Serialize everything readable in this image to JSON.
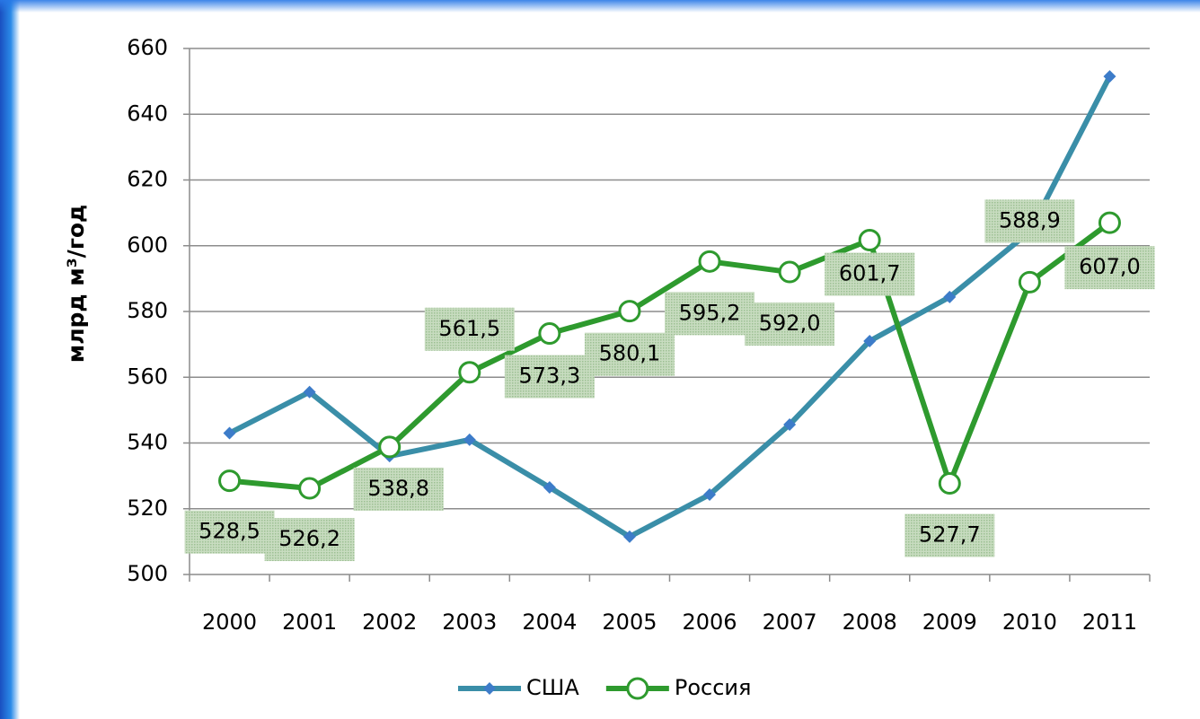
{
  "chart_data": {
    "type": "line",
    "y_label": "млрд м³/год",
    "categories": [
      "2000",
      "2001",
      "2002",
      "2003",
      "2004",
      "2005",
      "2006",
      "2007",
      "2008",
      "2009",
      "2010",
      "2011"
    ],
    "series": [
      {
        "name": "США",
        "color": "#3a8ea8",
        "marker": "diamond",
        "marker_color": "#3d7cc9",
        "values": [
          543,
          555.5,
          536,
          541,
          526.5,
          511.5,
          524.3,
          545.6,
          571,
          584.4,
          604.3,
          651.5
        ]
      },
      {
        "name": "Россия",
        "color": "#2e9a2e",
        "marker": "circle",
        "marker_color": "#ffffff",
        "values": [
          528.5,
          526.2,
          538.8,
          561.5,
          573.3,
          580.1,
          595.2,
          592.0,
          601.7,
          527.7,
          588.9,
          607.0
        ],
        "value_labels": [
          "528,5",
          "526,2",
          "538,8",
          "561,5",
          "573,3",
          "580,1",
          "595,2",
          "592,0",
          "601,7",
          "527,7",
          "588,9",
          "607,0"
        ]
      }
    ],
    "ylim": [
      500,
      660
    ],
    "yticks": [
      500,
      520,
      540,
      560,
      580,
      600,
      620,
      640,
      660
    ],
    "grid": true,
    "legend": "bottom"
  }
}
